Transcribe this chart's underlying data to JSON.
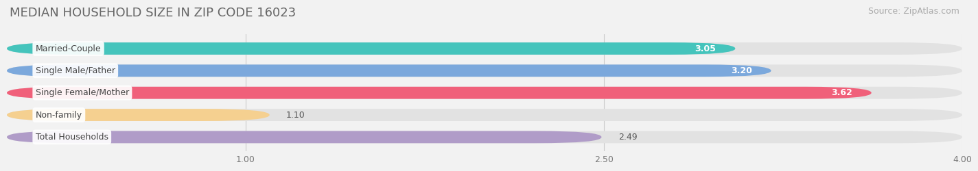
{
  "title": "MEDIAN HOUSEHOLD SIZE IN ZIP CODE 16023",
  "source": "Source: ZipAtlas.com",
  "categories": [
    "Married-Couple",
    "Single Male/Father",
    "Single Female/Mother",
    "Non-family",
    "Total Households"
  ],
  "values": [
    3.05,
    3.2,
    3.62,
    1.1,
    2.49
  ],
  "bar_colors": [
    "#45c4bc",
    "#7ba8dc",
    "#f0607a",
    "#f5d090",
    "#b09cc8"
  ],
  "value_inside": [
    true,
    true,
    true,
    false,
    false
  ],
  "xlim": [
    0,
    4.0
  ],
  "xticks": [
    1.0,
    2.5,
    4.0
  ],
  "xtick_labels": [
    "1.00",
    "2.50",
    "4.00"
  ],
  "background_color": "#f2f2f2",
  "bar_background": "#e2e2e2",
  "title_fontsize": 13,
  "source_fontsize": 9,
  "label_fontsize": 9,
  "value_fontsize": 9,
  "bar_height": 0.55,
  "bar_gap": 0.45
}
